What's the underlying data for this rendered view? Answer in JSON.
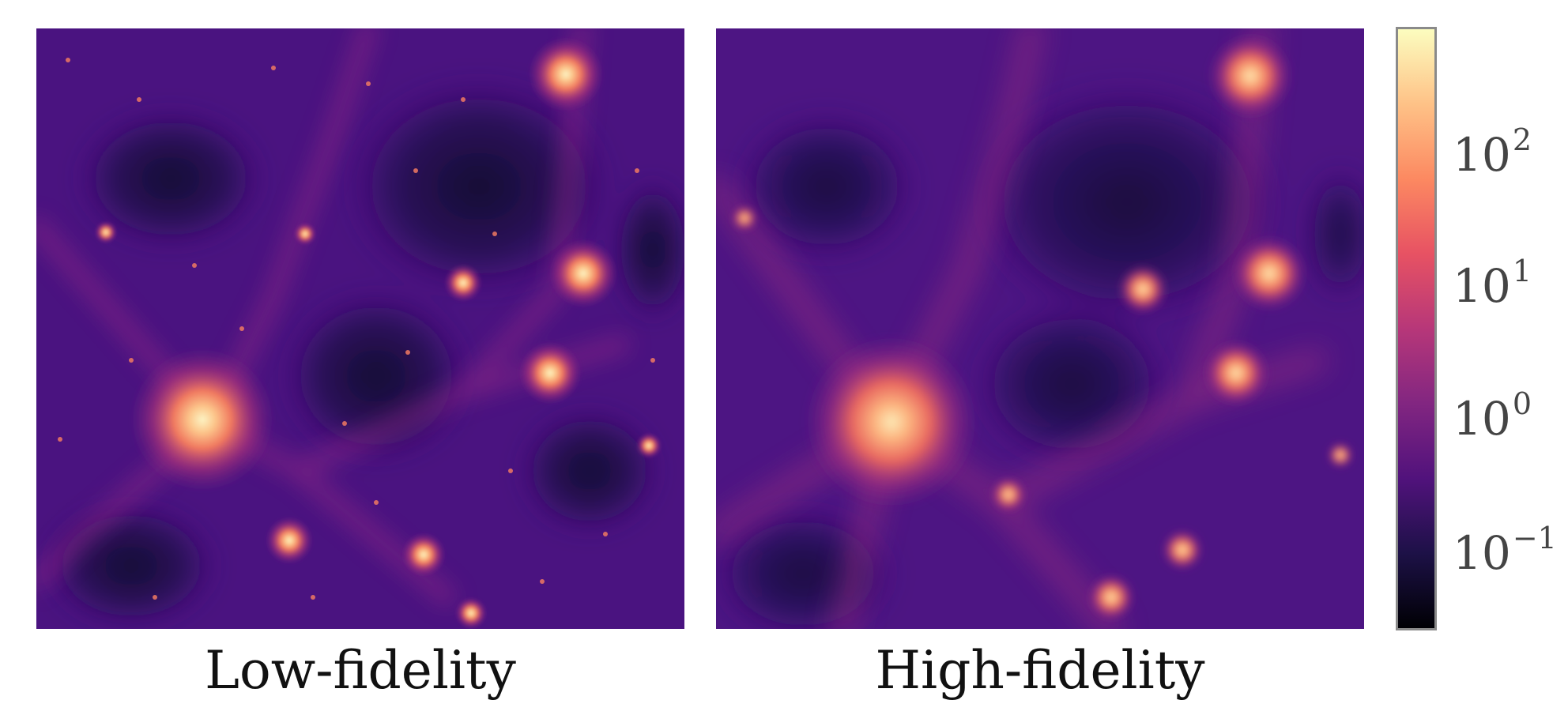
{
  "panels": [
    {
      "id": "low",
      "caption": "Low-fidelity"
    },
    {
      "id": "high",
      "caption": "High-fidelity"
    }
  ],
  "colorbar": {
    "colormap": "magma",
    "scale": "log",
    "stops": [
      "#000004",
      "#1d1147",
      "#51127c",
      "#822681",
      "#b73779",
      "#e75263",
      "#fc8961",
      "#fec287",
      "#fcfdbf"
    ],
    "ticks": [
      {
        "base": "10",
        "exp": "2"
      },
      {
        "base": "10",
        "exp": "1"
      },
      {
        "base": "10",
        "exp": "0"
      },
      {
        "base": "10",
        "exp": "−1"
      }
    ]
  }
}
